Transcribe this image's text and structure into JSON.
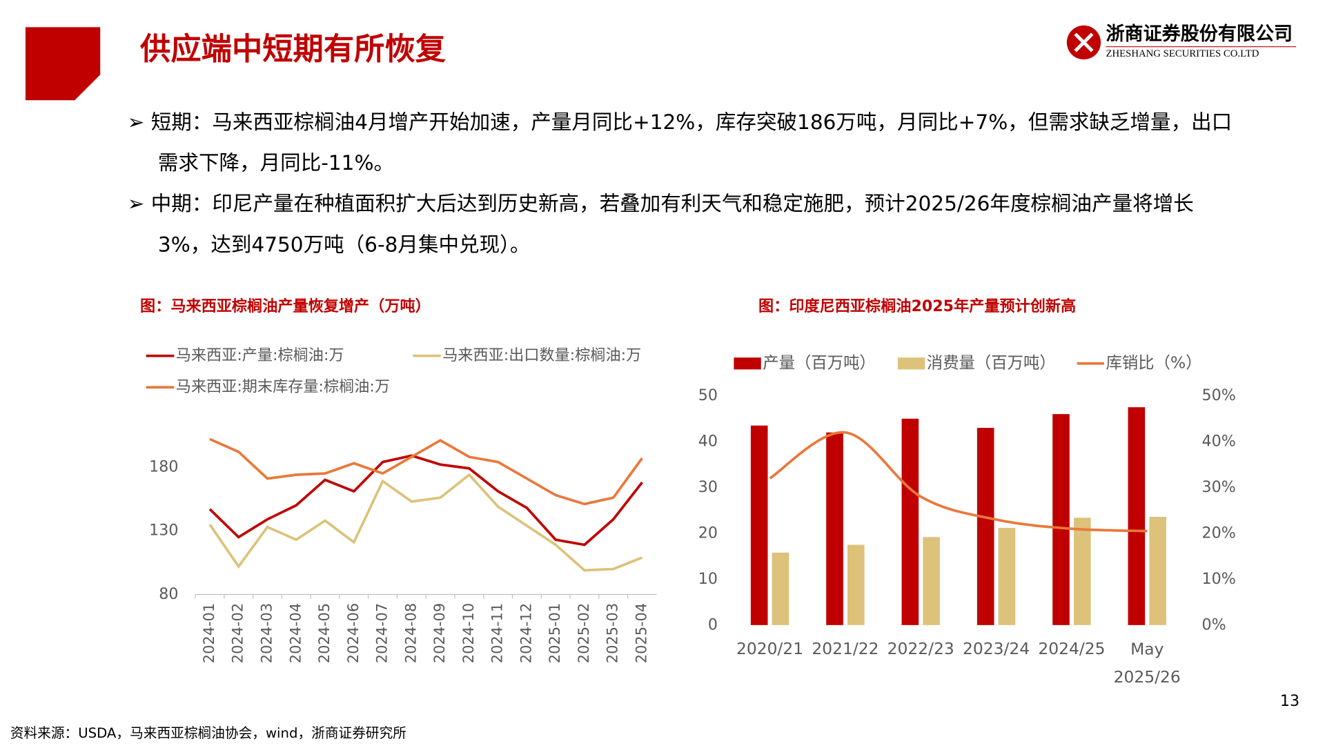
{
  "header": {
    "title": "供应端中短期有所恢复",
    "company": "浙商证券股份有限公司",
    "company_en": "ZHESHANG SECURITIES CO.LTD"
  },
  "bullets": [
    "短期：马来西亚棕榈油4月增产开始加速，产量月同比+12%，库存突破186万吨，月同比+7%，但需求缺乏增量，出口需求下降，月同比-11%。",
    "中期：印尼产量在种植面积扩大后达到历史新高，若叠加有利天气和稳定施肥，预计2025/26年度棕榈油产量将增长3%，达到4750万吨（6-8月集中兑现）。"
  ],
  "chart_data": [
    {
      "type": "line",
      "title": "图：马来西亚棕榈油产量恢复增产（万吨）",
      "categories": [
        "2024-01",
        "2024-02",
        "2024-03",
        "2024-04",
        "2024-05",
        "2024-06",
        "2024-07",
        "2024-08",
        "2024-09",
        "2024-10",
        "2024-11",
        "2024-12",
        "2025-01",
        "2025-02",
        "2025-03",
        "2025-04"
      ],
      "series": [
        {
          "name": "马来西亚:产量:棕榈油:万",
          "color": "#c00000",
          "values": [
            147,
            125,
            139,
            150,
            170,
            161,
            184,
            189,
            182,
            179,
            161,
            148,
            123,
            119,
            139,
            168
          ]
        },
        {
          "name": "马来西亚:出口数量:棕榈油:万",
          "color": "#dcc27a",
          "values": [
            135,
            102,
            133,
            123,
            138,
            121,
            169,
            153,
            156,
            174,
            149,
            134,
            119,
            99,
            100,
            109
          ]
        },
        {
          "name": "马来西亚:期末库存量:棕榈油:万",
          "color": "#e9783a",
          "values": [
            202,
            192,
            171,
            174,
            175,
            183,
            175,
            188,
            201,
            188,
            184,
            171,
            158,
            151,
            156,
            187
          ]
        }
      ],
      "ylim": [
        80,
        230
      ],
      "yticks": [
        80,
        130,
        180
      ]
    },
    {
      "type": "bar",
      "title": "图：印度尼西亚棕榈油2025年产量预计创新高",
      "categories": [
        "2020/21",
        "2021/22",
        "2022/23",
        "2023/24",
        "2024/25",
        "May 2025/26"
      ],
      "series": [
        {
          "name": "产量（百万吨）",
          "color": "#c00000",
          "values": [
            43.5,
            42,
            45,
            43,
            46,
            47.5
          ]
        },
        {
          "name": "消费量（百万吨）",
          "color": "#dcc27a",
          "values": [
            15.8,
            17.5,
            19.2,
            21.2,
            23.4,
            23.6
          ]
        },
        {
          "name": "库销比（%）",
          "color": "#e9783a",
          "type": "line",
          "axis": "y2",
          "values": [
            32,
            42,
            28,
            23,
            21,
            20.5
          ]
        }
      ],
      "ylim": [
        0,
        50
      ],
      "yticks": [
        0,
        10,
        20,
        30,
        40,
        50
      ],
      "y2lim": [
        0,
        50
      ],
      "y2ticks": [
        {
          "value": 0,
          "label": "0%"
        },
        {
          "value": 10,
          "label": "10%"
        },
        {
          "value": 20,
          "label": "20%"
        },
        {
          "value": 30,
          "label": "30%"
        },
        {
          "value": 40,
          "label": "40%"
        },
        {
          "value": 50,
          "label": "50%"
        }
      ]
    }
  ],
  "source": "资料来源：USDA，马来西亚棕榈油协会，wind，浙商证券研究所",
  "page_number": "13"
}
